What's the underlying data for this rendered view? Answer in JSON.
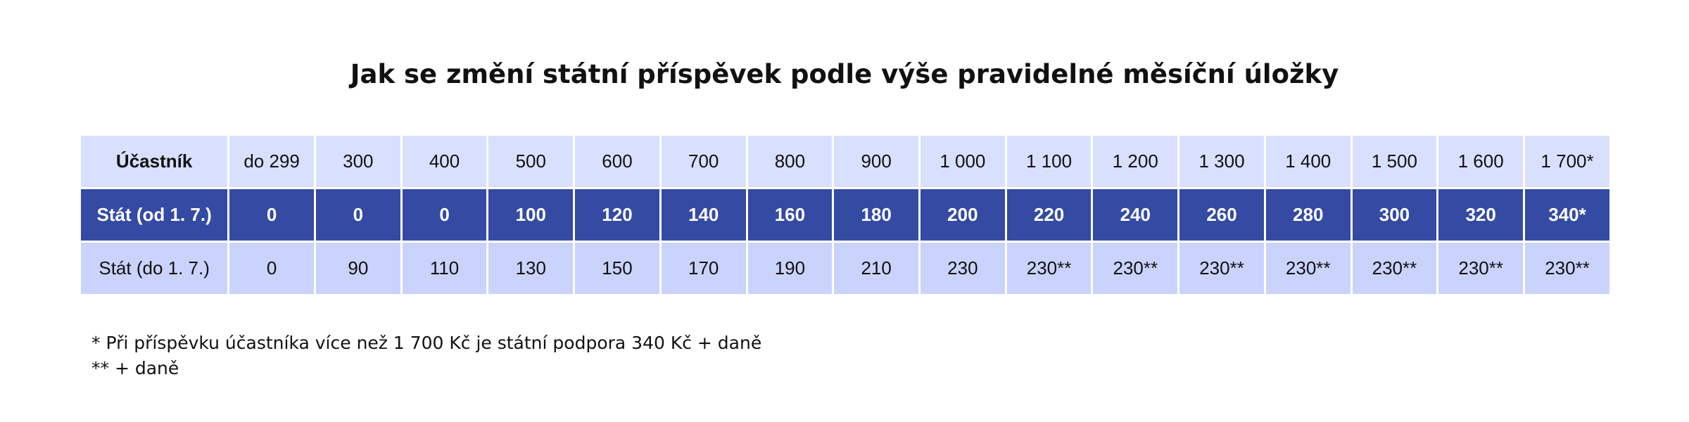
{
  "title": "Jak se změní státní příspěvek podle výše pravidelné měsíční úložky",
  "chart_data": {
    "type": "table",
    "title": "Jak se změní státní příspěvek podle výše pravidelné měsíční úložky",
    "columns": [
      "do 299",
      "300",
      "400",
      "500",
      "600",
      "700",
      "800",
      "900",
      "1 000",
      "1 100",
      "1 200",
      "1 300",
      "1 400",
      "1 500",
      "1 600",
      "1 700*"
    ],
    "rows": [
      {
        "label": "Účastník",
        "values": [
          "do 299",
          "300",
          "400",
          "500",
          "600",
          "700",
          "800",
          "900",
          "1 000",
          "1 100",
          "1 200",
          "1 300",
          "1 400",
          "1 500",
          "1 600",
          "1 700*"
        ]
      },
      {
        "label": "Stát (od 1. 7.)",
        "values": [
          "0",
          "0",
          "0",
          "100",
          "120",
          "140",
          "160",
          "180",
          "200",
          "220",
          "240",
          "260",
          "280",
          "300",
          "320",
          "340*"
        ]
      },
      {
        "label": "Stát (do 1. 7.)",
        "values": [
          "0",
          "90",
          "110",
          "130",
          "150",
          "170",
          "190",
          "210",
          "230",
          "230**",
          "230**",
          "230**",
          "230**",
          "230**",
          "230**",
          "230**"
        ]
      }
    ],
    "colors": {
      "participant_row": "#d9e0fd",
      "new_row": "#344aa3",
      "old_row": "#cad3fb"
    }
  },
  "notes": [
    "* Při příspěvku účastníka více než 1 700 Kč je státní podpora 340 Kč + daně",
    "** + daně"
  ]
}
